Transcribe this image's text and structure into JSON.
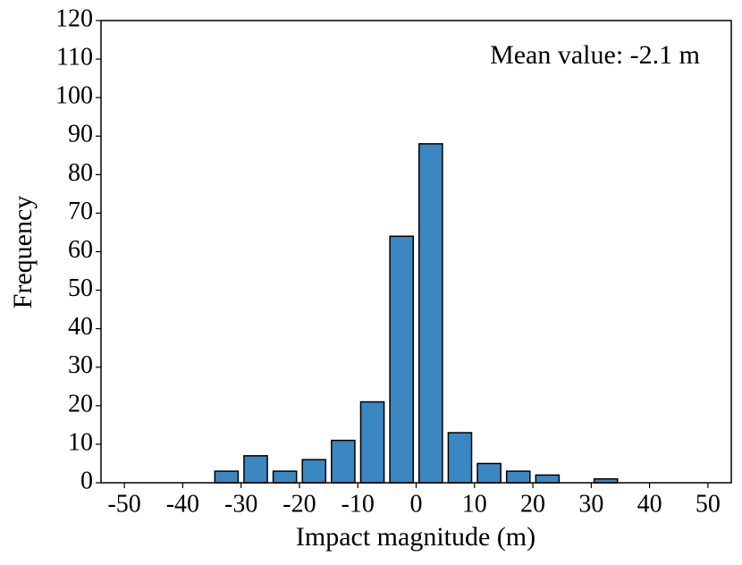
{
  "chart_data": {
    "type": "histogram",
    "x_label": "Impact magnitude (m)",
    "y_label": "Frequency",
    "annotation": "Mean value: -2.1 m",
    "bins": [
      -50,
      -45,
      -40,
      -35,
      -30,
      -25,
      -20,
      -15,
      -10,
      -5,
      0,
      5,
      10,
      15,
      20,
      25,
      30,
      35,
      40,
      45,
      50
    ],
    "counts": [
      0,
      0,
      0,
      3,
      7,
      3,
      6,
      11,
      21,
      64,
      88,
      13,
      5,
      3,
      2,
      0,
      1,
      0,
      0,
      0
    ],
    "color": "#3a87c2",
    "edgecolor": "#000000",
    "xlim": [
      -54,
      54
    ],
    "ylim": [
      0,
      120
    ],
    "xticks": [
      -50,
      -40,
      -30,
      -20,
      -10,
      0,
      10,
      20,
      30,
      40,
      50
    ],
    "yticks": [
      0,
      10,
      20,
      30,
      40,
      50,
      60,
      70,
      80,
      90,
      100,
      110,
      120
    ]
  }
}
